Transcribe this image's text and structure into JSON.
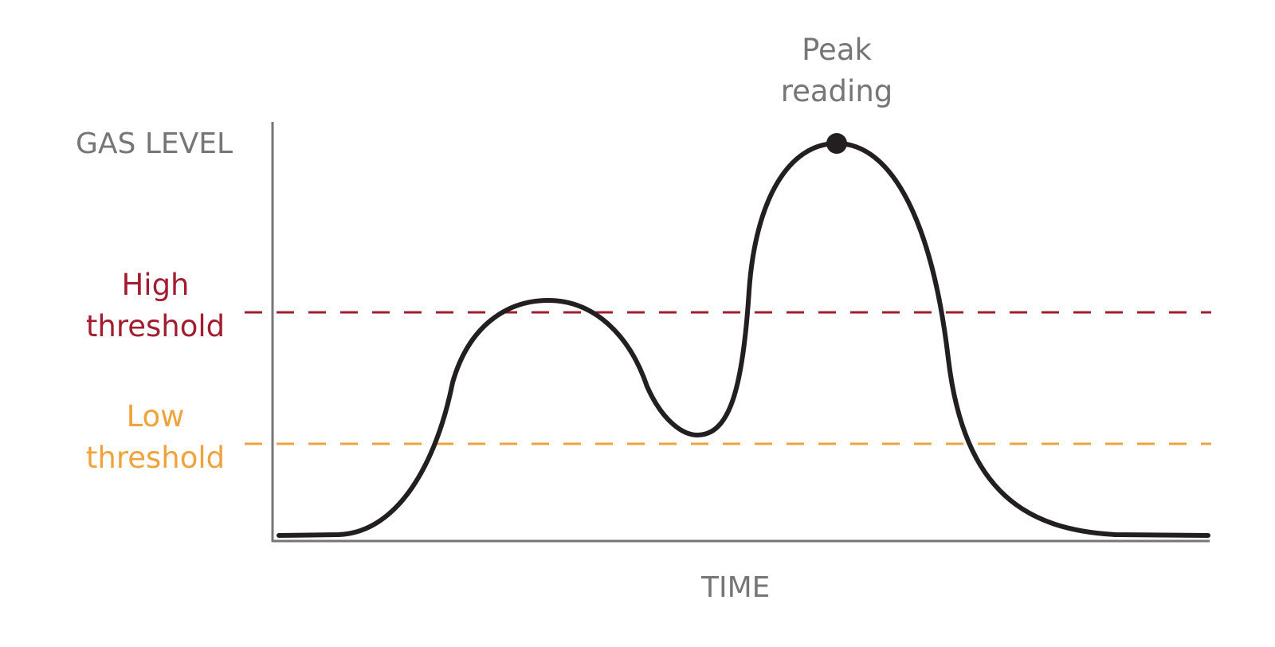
{
  "diagram": {
    "y_axis_label": "GAS LEVEL",
    "x_axis_label": "TIME",
    "peak": {
      "line1": "Peak",
      "line2": "reading"
    },
    "high_threshold": {
      "line1": "High",
      "line2": "threshold",
      "color": "#a31d30"
    },
    "low_threshold": {
      "line1": "Low",
      "line2": "threshold",
      "color": "#f0a33c"
    },
    "colors": {
      "axis": "#767676",
      "curve": "#231f20",
      "label_gray": "#767676"
    }
  }
}
